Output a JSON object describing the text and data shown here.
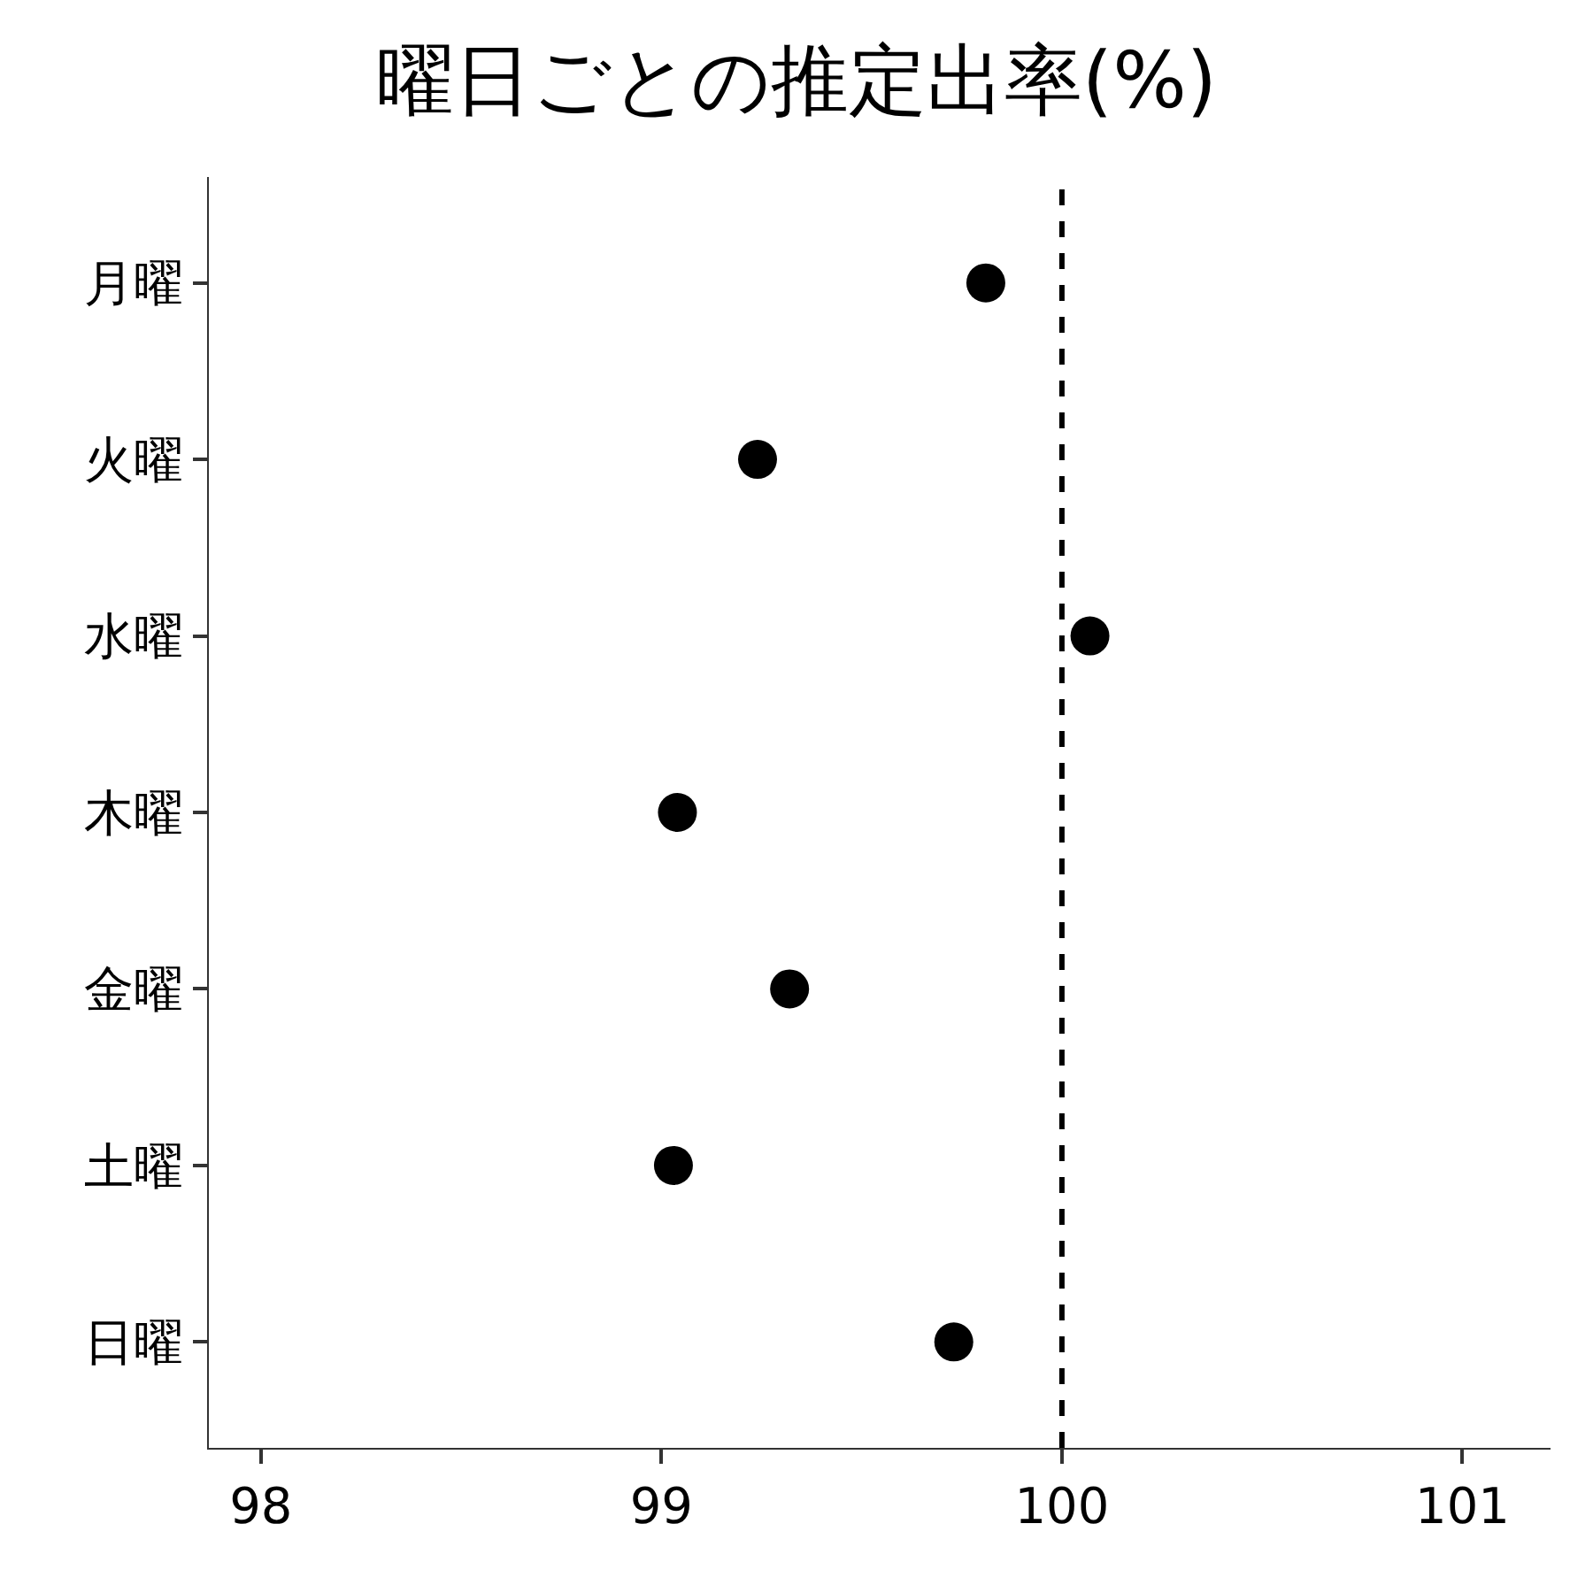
{
  "chart_data": {
    "type": "scatter",
    "title": "曜日ごとの推定出率(%)",
    "categories": [
      "月曜",
      "火曜",
      "水曜",
      "木曜",
      "金曜",
      "土曜",
      "日曜"
    ],
    "orientation": "horizontal",
    "series": [
      {
        "color": "#000000",
        "values": [
          99.81,
          99.24,
          100.07,
          99.04,
          99.32,
          99.03,
          99.73
        ]
      }
    ],
    "xlim": [
      97.87,
      101.22
    ],
    "xticks": [
      98,
      99,
      100,
      101
    ],
    "ref_lines": [
      {
        "axis": "x",
        "value": 100,
        "color": "#000000",
        "line_style": "dashed"
      }
    ],
    "marker": "circle"
  }
}
